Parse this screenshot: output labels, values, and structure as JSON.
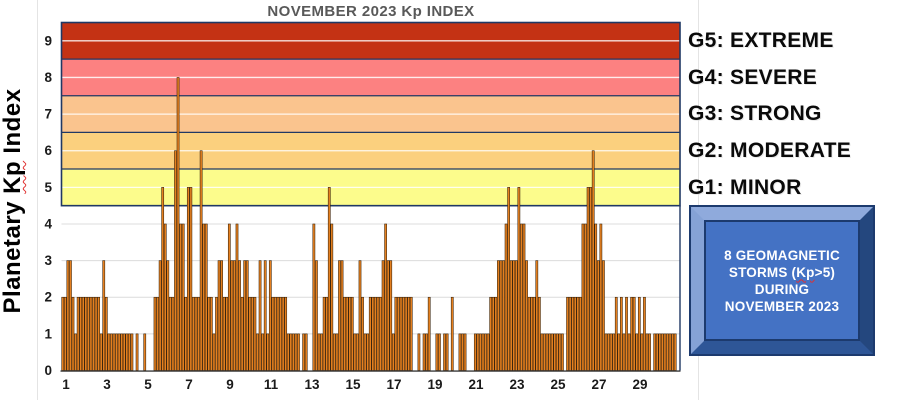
{
  "title": "NOVEMBER 2023 Kp INDEX",
  "y_axis": {
    "label_pre": "Planetary ",
    "label_kp": "Kp",
    "label_post": " Index",
    "ticks": [
      0,
      1,
      2,
      3,
      4,
      5,
      6,
      7,
      8,
      9
    ]
  },
  "x_axis": {
    "tick_days": [
      1,
      3,
      5,
      7,
      9,
      11,
      13,
      15,
      17,
      19,
      21,
      23,
      25,
      27,
      29
    ]
  },
  "legend": {
    "items": [
      {
        "id": "G5",
        "label": "G5: EXTREME",
        "color": "#C43214",
        "kp_center": 9
      },
      {
        "id": "G4",
        "label": "G4: SEVERE",
        "color": "#FC8181",
        "kp_center": 8
      },
      {
        "id": "G3",
        "label": "G3: STRONG",
        "color": "#FAC48E",
        "kp_center": 7
      },
      {
        "id": "G2",
        "label": "G2: MODERATE",
        "color": "#FBD07E",
        "kp_center": 6
      },
      {
        "id": "G1",
        "label": "G1: MINOR",
        "color": "#FCFC8C",
        "kp_center": 5
      }
    ]
  },
  "storm_box": {
    "line1": "8 GEOMAGNETIC",
    "line2_pre": "STORMS (",
    "line2_kp": "Kp",
    "line2_post": ">5)",
    "line3": "DURING",
    "line4": "NOVEMBER 2023",
    "panel_color": "#4472C4",
    "bevel_light": "#8FAADC",
    "bevel_dark": "#2E5697",
    "border_color": "#1C3A6E"
  },
  "chart_data": {
    "type": "bar",
    "title": "NOVEMBER 2023 Kp INDEX",
    "ylabel": "Planetary Kp Index",
    "ylim": [
      0,
      9.5
    ],
    "x_tick_labels": [
      1,
      3,
      5,
      7,
      9,
      11,
      13,
      15,
      17,
      19,
      21,
      23,
      25,
      27,
      29
    ],
    "readings_per_day": 8,
    "bar_color": "#E5801F",
    "bar_edge_color": "#35200A",
    "band_edge_color": "#203864",
    "bands": [
      {
        "label": "G1: MINOR",
        "kp_min": 4.5,
        "kp_max": 5.5,
        "color": "#FCFC8C"
      },
      {
        "label": "G2: MODERATE",
        "kp_min": 5.5,
        "kp_max": 6.5,
        "color": "#FBD07E"
      },
      {
        "label": "G3: STRONG",
        "kp_min": 6.5,
        "kp_max": 7.5,
        "color": "#FAC48E"
      },
      {
        "label": "G4: SEVERE",
        "kp_min": 7.5,
        "kp_max": 8.5,
        "color": "#FC8181"
      },
      {
        "label": "G5: EXTREME",
        "kp_min": 8.5,
        "kp_max": 9.5,
        "color": "#C43214"
      }
    ],
    "kp_values": [
      [
        2,
        2,
        3,
        3,
        2,
        1,
        2,
        2
      ],
      [
        2,
        2,
        2,
        2,
        2,
        2,
        2,
        1
      ],
      [
        3,
        2,
        1,
        1,
        1,
        1,
        1,
        1
      ],
      [
        1,
        1,
        1,
        1,
        0,
        1,
        0,
        0
      ],
      [
        1,
        0,
        0,
        0,
        2,
        2,
        3,
        5
      ],
      [
        4,
        3,
        2,
        2,
        6,
        8,
        4,
        4
      ],
      [
        2,
        5,
        5,
        2,
        2,
        2,
        6,
        4
      ],
      [
        4,
        2,
        2,
        1,
        2,
        3,
        3,
        2
      ],
      [
        2,
        4,
        3,
        3,
        4,
        3,
        2,
        3
      ],
      [
        3,
        2,
        2,
        2,
        1,
        3,
        1,
        3
      ],
      [
        1,
        3,
        2,
        2,
        2,
        2,
        2,
        2
      ],
      [
        1,
        1,
        1,
        1,
        1,
        0,
        1,
        1
      ],
      [
        0,
        0,
        4,
        3,
        1,
        1,
        2,
        2
      ],
      [
        5,
        4,
        1,
        1,
        3,
        3,
        2,
        2
      ],
      [
        2,
        2,
        1,
        1,
        3,
        2,
        1,
        1
      ],
      [
        2,
        2,
        2,
        2,
        2,
        3,
        4,
        3
      ],
      [
        3,
        1,
        2,
        2,
        2,
        2,
        2,
        2
      ],
      [
        2,
        0,
        0,
        1,
        0,
        1,
        1,
        2
      ],
      [
        0,
        0,
        1,
        1,
        0,
        1,
        1,
        0
      ],
      [
        2,
        0,
        0,
        1,
        1,
        1,
        0,
        0
      ],
      [
        0,
        1,
        1,
        1,
        1,
        1,
        1,
        2
      ],
      [
        2,
        2,
        3,
        3,
        3,
        4,
        5,
        3
      ],
      [
        3,
        3,
        5,
        4,
        4,
        3,
        2,
        2
      ],
      [
        2,
        3,
        2,
        1,
        1,
        1,
        1,
        1
      ],
      [
        1,
        1,
        1,
        1,
        0,
        2,
        2,
        2
      ],
      [
        2,
        2,
        2,
        4,
        4,
        5,
        5,
        6
      ],
      [
        4,
        3,
        4,
        3,
        1,
        1,
        1,
        1
      ],
      [
        2,
        1,
        2,
        1,
        2,
        1,
        2,
        2
      ],
      [
        1,
        2,
        1,
        2,
        1,
        1,
        0,
        1
      ],
      [
        1,
        1,
        1,
        1,
        1,
        1,
        1,
        1
      ]
    ]
  }
}
